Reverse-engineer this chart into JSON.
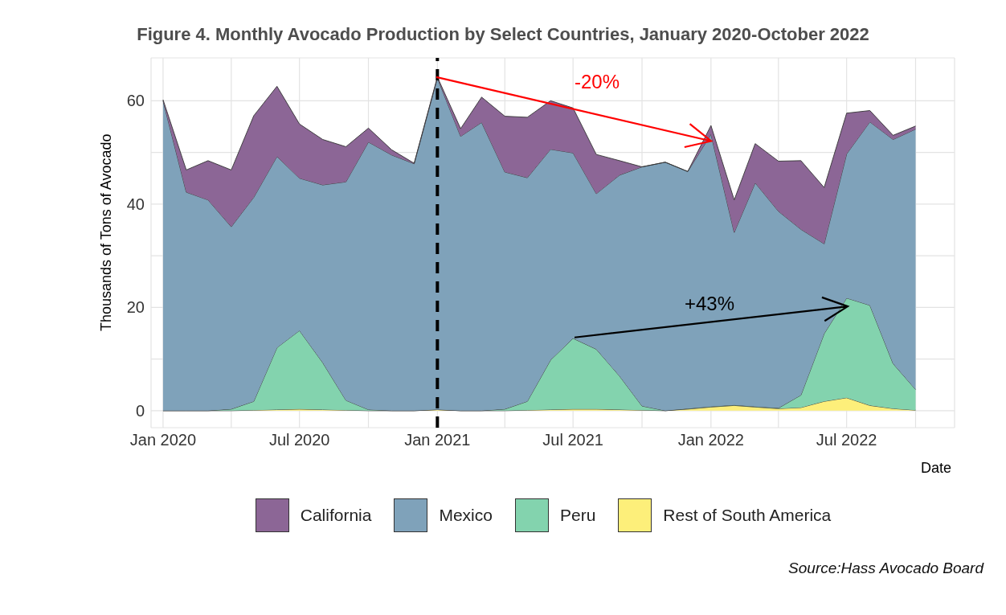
{
  "chart_data": {
    "type": "area",
    "title": "Figure 4. Monthly Avocado Production by Select Countries, January 2020-October 2022",
    "xlabel": "Date",
    "ylabel": "Thousands of Tons of Avocado",
    "stacked": true,
    "grid": true,
    "legend": "bottom",
    "x": [
      "2020-01",
      "2020-02",
      "2020-03",
      "2020-04",
      "2020-05",
      "2020-06",
      "2020-07",
      "2020-08",
      "2020-09",
      "2020-10",
      "2020-11",
      "2020-12",
      "2021-01",
      "2021-02",
      "2021-03",
      "2021-04",
      "2021-05",
      "2021-06",
      "2021-07",
      "2021-08",
      "2021-09",
      "2021-10",
      "2021-11",
      "2021-12",
      "2022-01",
      "2022-02",
      "2022-03",
      "2022-04",
      "2022-05",
      "2022-06",
      "2022-07",
      "2022-08",
      "2022-09",
      "2022-10"
    ],
    "xlim": [
      "2019-12-16",
      "2022-11-22"
    ],
    "xticks": [
      {
        "value": "2020-01",
        "label": "Jan 2020"
      },
      {
        "value": "2020-04",
        "label": null
      },
      {
        "value": "2020-07",
        "label": "Jul 2020"
      },
      {
        "value": "2020-10",
        "label": null
      },
      {
        "value": "2021-01",
        "label": "Jan 2021"
      },
      {
        "value": "2021-04",
        "label": null
      },
      {
        "value": "2021-07",
        "label": "Jul 2021"
      },
      {
        "value": "2021-10",
        "label": null
      },
      {
        "value": "2022-01",
        "label": "Jan 2022"
      },
      {
        "value": "2022-04",
        "label": null
      },
      {
        "value": "2022-07",
        "label": "Jul 2022"
      },
      {
        "value": "2022-10",
        "label": null
      }
    ],
    "ylim": [
      -3.3,
      68.3
    ],
    "yticks": [
      0,
      {
        "value": 10,
        "label": null
      },
      20,
      {
        "value": 30,
        "label": null
      },
      40,
      {
        "value": 50,
        "label": null
      },
      60
    ],
    "series": [
      {
        "name": "Rest of South America",
        "color": "#fdef7a",
        "values": [
          0,
          0,
          0,
          0,
          0.1,
          0.2,
          0.3,
          0.2,
          0.1,
          0,
          0,
          0,
          0.2,
          0,
          0,
          0,
          0.1,
          0.2,
          0.3,
          0.3,
          0.2,
          0.1,
          0,
          0.3,
          0.7,
          1.0,
          0.7,
          0.4,
          0.6,
          1.8,
          2.5,
          1.0,
          0.4,
          0.1
        ]
      },
      {
        "name": "Peru",
        "color": "#83d3ae",
        "values": [
          0,
          0,
          0,
          0.3,
          1.7,
          12.0,
          15.2,
          9.1,
          1.9,
          0.2,
          0,
          0,
          0,
          0,
          0,
          0.3,
          1.7,
          9.6,
          13.7,
          11.6,
          6.5,
          0.8,
          0,
          0.1,
          0.1,
          0.1,
          0.1,
          0.1,
          2.4,
          13.1,
          19.3,
          19.4,
          8.7,
          4.0
        ]
      },
      {
        "name": "Mexico",
        "color": "#7fa2ba",
        "values": [
          60.0,
          42.3,
          40.8,
          35.3,
          39.5,
          37.0,
          29.5,
          34.4,
          42.3,
          51.8,
          49.5,
          47.8,
          64.2,
          53.1,
          55.8,
          45.9,
          43.3,
          40.8,
          35.9,
          30.1,
          38.9,
          46.3,
          48.1,
          45.9,
          52.7,
          33.4,
          43.3,
          38.1,
          32.1,
          17.4,
          27.9,
          35.5,
          43.4,
          50.4
        ]
      },
      {
        "name": "California",
        "color": "#8c6696",
        "values": [
          0.2,
          4.3,
          7.6,
          11.0,
          15.8,
          13.6,
          10.5,
          8.8,
          6.8,
          2.7,
          1.0,
          0.1,
          0.2,
          1.5,
          4.9,
          10.8,
          11.7,
          9.4,
          8.7,
          7.6,
          2.8,
          0,
          0,
          0,
          1.7,
          6.3,
          7.6,
          9.7,
          13.3,
          10.9,
          7.9,
          2.2,
          0.8,
          0.6
        ]
      }
    ],
    "ref_lines": [
      {
        "axis": "x",
        "value": "2021-01",
        "color": "#000000",
        "line_style": "dashed"
      }
    ],
    "annotations": [
      "-20%",
      "+43%",
      "Source:Hass Avocado Board"
    ]
  }
}
